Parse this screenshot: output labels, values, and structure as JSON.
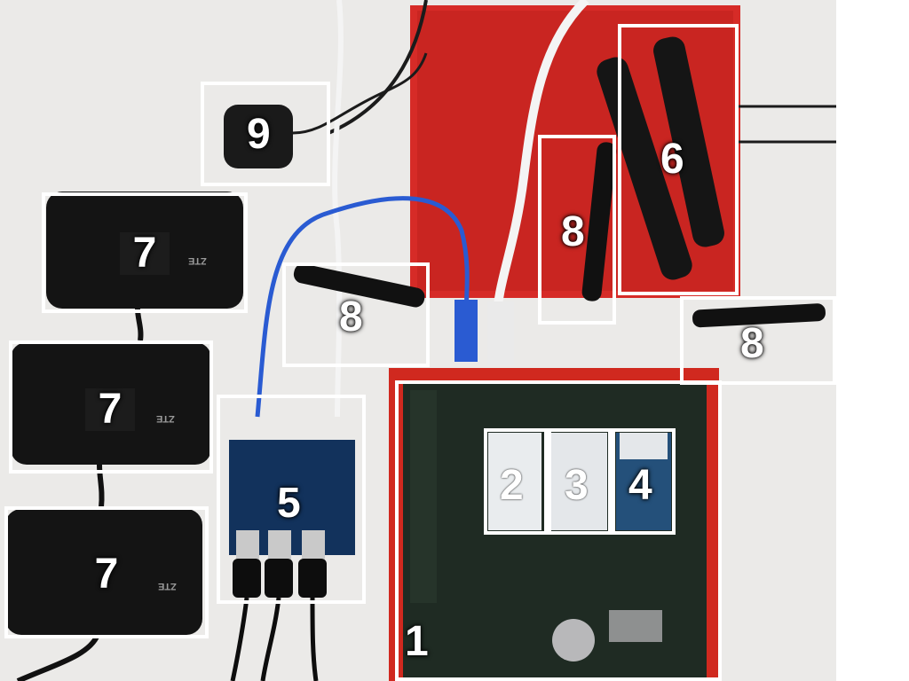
{
  "colors": {
    "background": "#ebeae8",
    "red_enclosure": "#d62b27",
    "board": "#1f2b23",
    "box_outline": "#ffffff",
    "hotspot_body": "#141414"
  },
  "labels": {
    "board": "1",
    "module_a": "2",
    "module_b": "3",
    "module_c": "4",
    "usb_hub": "5",
    "antenna_panel": "6",
    "hotspot": "7",
    "dipole": "8",
    "gps": "9"
  },
  "hotspot_brand": "ZTE"
}
